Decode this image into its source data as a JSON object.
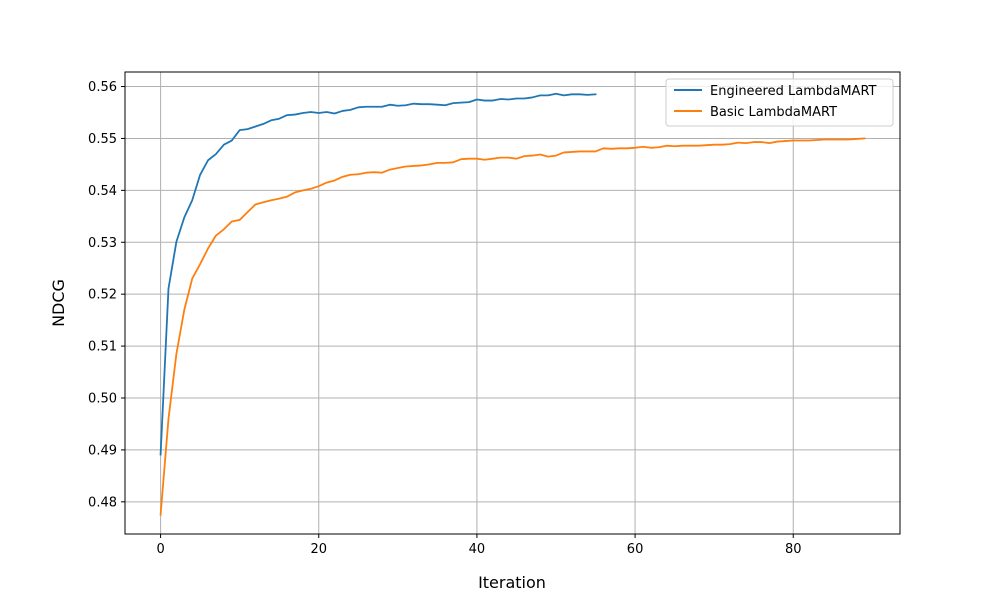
{
  "chart_data": {
    "type": "line",
    "title": "",
    "xlabel": "Iteration",
    "ylabel": "NDCG",
    "xlim": [
      -4.5,
      93.5
    ],
    "ylim": [
      0.4738,
      0.5628
    ],
    "x_ticks": [
      0,
      20,
      40,
      60,
      80
    ],
    "y_ticks": [
      0.48,
      0.49,
      0.5,
      0.51,
      0.52,
      0.53,
      0.54,
      0.55,
      0.56
    ],
    "x_tick_labels": [
      "0",
      "20",
      "40",
      "60",
      "80"
    ],
    "y_tick_labels": [
      "0.48",
      "0.49",
      "0.50",
      "0.51",
      "0.52",
      "0.53",
      "0.54",
      "0.55",
      "0.56"
    ],
    "grid": true,
    "legend_position": "top-right",
    "series": [
      {
        "name": "Engineered LambdaMART",
        "color": "#1f77b4",
        "x_start": 0,
        "values": [
          0.4891,
          0.5211,
          0.5301,
          0.5348,
          0.5381,
          0.543,
          0.5458,
          0.547,
          0.5488,
          0.5496,
          0.5516,
          0.5518,
          0.5523,
          0.5528,
          0.5535,
          0.5538,
          0.5545,
          0.5546,
          0.5549,
          0.5551,
          0.5549,
          0.5551,
          0.5548,
          0.5553,
          0.5555,
          0.556,
          0.5561,
          0.5561,
          0.5561,
          0.5565,
          0.5563,
          0.5564,
          0.5567,
          0.5566,
          0.5566,
          0.5565,
          0.5564,
          0.5568,
          0.5569,
          0.557,
          0.5575,
          0.5573,
          0.5573,
          0.5576,
          0.5575,
          0.5577,
          0.5577,
          0.5579,
          0.5583,
          0.5583,
          0.5586,
          0.5583,
          0.5585,
          0.5585,
          0.5584,
          0.5585
        ]
      },
      {
        "name": "Basic LambdaMART",
        "color": "#ff7f0e",
        "x_start": 0,
        "values": [
          0.4775,
          0.496,
          0.5085,
          0.517,
          0.523,
          0.5258,
          0.5288,
          0.5313,
          0.5325,
          0.534,
          0.5343,
          0.5358,
          0.5373,
          0.5377,
          0.5381,
          0.5384,
          0.5388,
          0.5396,
          0.54,
          0.5403,
          0.5408,
          0.5415,
          0.5419,
          0.5426,
          0.543,
          0.5431,
          0.5434,
          0.5435,
          0.5434,
          0.544,
          0.5443,
          0.5446,
          0.5447,
          0.5448,
          0.545,
          0.5453,
          0.5453,
          0.5454,
          0.546,
          0.5461,
          0.5461,
          0.5459,
          0.5461,
          0.5463,
          0.5463,
          0.5461,
          0.5466,
          0.5467,
          0.5469,
          0.5465,
          0.5467,
          0.5473,
          0.5474,
          0.5475,
          0.5475,
          0.5475,
          0.5481,
          0.548,
          0.5481,
          0.5481,
          0.5482,
          0.5484,
          0.5482,
          0.5483,
          0.5486,
          0.5485,
          0.5486,
          0.5486,
          0.5486,
          0.5487,
          0.5488,
          0.5488,
          0.5489,
          0.5492,
          0.5491,
          0.5493,
          0.5493,
          0.5491,
          0.5494,
          0.5495,
          0.5496,
          0.5496,
          0.5496,
          0.5497,
          0.5498,
          0.5498,
          0.5498,
          0.5498,
          0.5499,
          0.55
        ]
      }
    ]
  }
}
